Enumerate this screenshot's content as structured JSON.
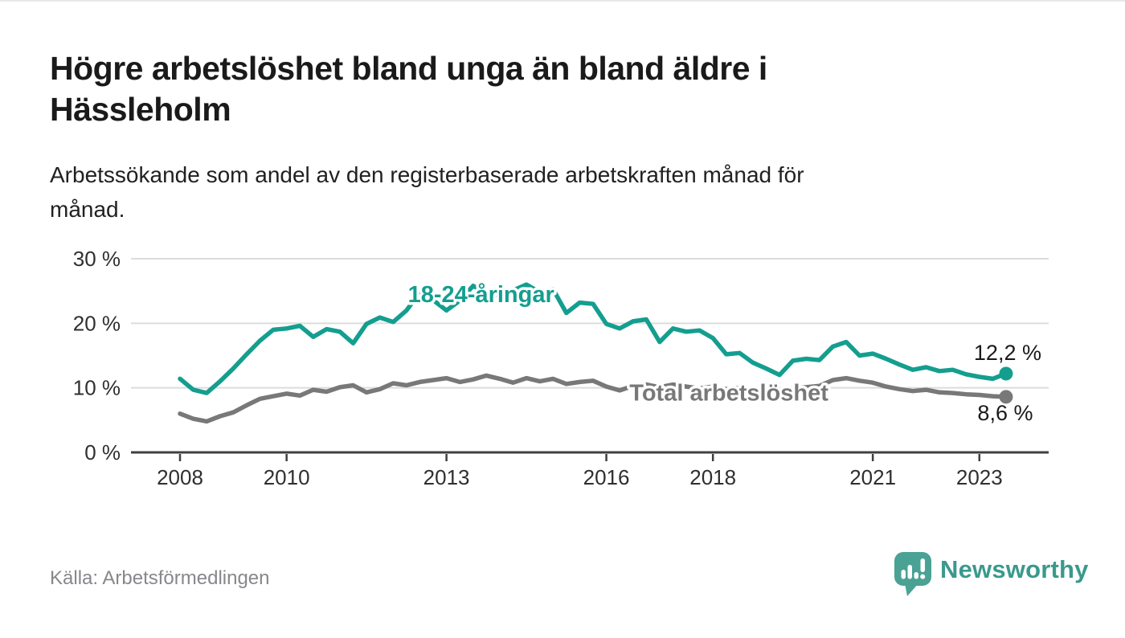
{
  "header": {
    "title_lines": [
      "Högre arbetslöshet bland unga än bland äldre i",
      "Hässleholm"
    ],
    "subtitle_lines": [
      "Arbetssökande som andel av den registerbaserade arbetskraften månad för",
      "månad."
    ]
  },
  "footer": {
    "source": "Källa: Arbetsförmedlingen",
    "brand": "Newsworthy"
  },
  "colors": {
    "youth_line": "#149e8f",
    "total_line": "#787878",
    "grid": "#dcdcdc",
    "axis": "#3f3f3f",
    "tick_text": "#2f2f2f",
    "value_text": "#1a1a1a",
    "logo_teal": "#4aa294",
    "wordmark_teal": "#3a998c"
  },
  "chart_data": {
    "type": "line",
    "title": "Högre arbetslöshet bland unga än bland äldre i Hässleholm",
    "subtitle": "Arbetssökande som andel av den registerbaserade arbetskraften månad för månad.",
    "source": "Källa: Arbetsförmedlingen",
    "grid": true,
    "legend_position": "inline-labels",
    "x_axis": {
      "min": 2007.08,
      "max": 2024.3,
      "ticks": [
        2008,
        2010,
        2013,
        2016,
        2018,
        2021,
        2023
      ]
    },
    "y_axis": {
      "min": 0,
      "max": 30,
      "ticks": [
        0,
        10,
        20,
        30
      ],
      "tick_suffix": " %"
    },
    "series": [
      {
        "name": "18-24-åringar",
        "color": "#149e8f",
        "label_anchor": {
          "x": 2013.65,
          "y": 24.5
        },
        "end_value_label": "12,2 %",
        "end_label_offset": {
          "dx": 2,
          "dy": -17
        },
        "points": [
          [
            2008.0,
            11.4
          ],
          [
            2008.25,
            9.7
          ],
          [
            2008.5,
            9.2
          ],
          [
            2008.75,
            11.0
          ],
          [
            2009.0,
            13.0
          ],
          [
            2009.25,
            15.2
          ],
          [
            2009.5,
            17.3
          ],
          [
            2009.75,
            19.0
          ],
          [
            2010.0,
            19.2
          ],
          [
            2010.25,
            19.6
          ],
          [
            2010.5,
            17.9
          ],
          [
            2010.75,
            19.1
          ],
          [
            2011.0,
            18.7
          ],
          [
            2011.25,
            16.9
          ],
          [
            2011.5,
            19.9
          ],
          [
            2011.75,
            20.9
          ],
          [
            2012.0,
            20.2
          ],
          [
            2012.25,
            22.0
          ],
          [
            2012.5,
            24.8
          ],
          [
            2012.75,
            23.6
          ],
          [
            2013.0,
            22.0
          ],
          [
            2013.25,
            23.5
          ],
          [
            2013.5,
            25.8
          ],
          [
            2013.75,
            24.6
          ],
          [
            2014.0,
            24.2
          ],
          [
            2014.25,
            25.1
          ],
          [
            2014.5,
            26.0
          ],
          [
            2014.75,
            24.8
          ],
          [
            2015.0,
            25.3
          ],
          [
            2015.25,
            21.6
          ],
          [
            2015.5,
            23.2
          ],
          [
            2015.75,
            23.0
          ],
          [
            2016.0,
            19.9
          ],
          [
            2016.25,
            19.2
          ],
          [
            2016.5,
            20.3
          ],
          [
            2016.75,
            20.6
          ],
          [
            2017.0,
            17.1
          ],
          [
            2017.25,
            19.2
          ],
          [
            2017.5,
            18.7
          ],
          [
            2017.75,
            18.9
          ],
          [
            2018.0,
            17.7
          ],
          [
            2018.25,
            15.2
          ],
          [
            2018.5,
            15.4
          ],
          [
            2018.75,
            13.9
          ],
          [
            2019.0,
            13.0
          ],
          [
            2019.25,
            12.0
          ],
          [
            2019.5,
            14.2
          ],
          [
            2019.75,
            14.5
          ],
          [
            2020.0,
            14.3
          ],
          [
            2020.25,
            16.4
          ],
          [
            2020.5,
            17.1
          ],
          [
            2020.75,
            15.0
          ],
          [
            2021.0,
            15.3
          ],
          [
            2021.25,
            14.5
          ],
          [
            2021.5,
            13.6
          ],
          [
            2021.75,
            12.8
          ],
          [
            2022.0,
            13.2
          ],
          [
            2022.25,
            12.6
          ],
          [
            2022.5,
            12.8
          ],
          [
            2022.75,
            12.1
          ],
          [
            2023.0,
            11.7
          ],
          [
            2023.25,
            11.4
          ],
          [
            2023.5,
            12.2
          ]
        ]
      },
      {
        "name": "Total arbetslöshet",
        "color": "#787878",
        "label_anchor": {
          "x": 2018.3,
          "y": 9.3
        },
        "end_value_label": "8,6 %",
        "end_label_offset": {
          "dx": -1,
          "dy": 29
        },
        "points": [
          [
            2008.0,
            6.0
          ],
          [
            2008.25,
            5.2
          ],
          [
            2008.5,
            4.8
          ],
          [
            2008.75,
            5.6
          ],
          [
            2009.0,
            6.2
          ],
          [
            2009.25,
            7.3
          ],
          [
            2009.5,
            8.3
          ],
          [
            2009.75,
            8.7
          ],
          [
            2010.0,
            9.1
          ],
          [
            2010.25,
            8.8
          ],
          [
            2010.5,
            9.7
          ],
          [
            2010.75,
            9.4
          ],
          [
            2011.0,
            10.1
          ],
          [
            2011.25,
            10.4
          ],
          [
            2011.5,
            9.3
          ],
          [
            2011.75,
            9.8
          ],
          [
            2012.0,
            10.7
          ],
          [
            2012.25,
            10.4
          ],
          [
            2012.5,
            10.9
          ],
          [
            2012.75,
            11.2
          ],
          [
            2013.0,
            11.5
          ],
          [
            2013.25,
            10.9
          ],
          [
            2013.5,
            11.3
          ],
          [
            2013.75,
            11.9
          ],
          [
            2014.0,
            11.4
          ],
          [
            2014.25,
            10.8
          ],
          [
            2014.5,
            11.5
          ],
          [
            2014.75,
            11.0
          ],
          [
            2015.0,
            11.4
          ],
          [
            2015.25,
            10.6
          ],
          [
            2015.5,
            10.9
          ],
          [
            2015.75,
            11.1
          ],
          [
            2016.0,
            10.2
          ],
          [
            2016.25,
            9.6
          ],
          [
            2016.5,
            10.3
          ],
          [
            2016.75,
            10.5
          ],
          [
            2017.0,
            10.1
          ],
          [
            2017.25,
            10.5
          ],
          [
            2017.5,
            10.2
          ],
          [
            2017.75,
            9.9
          ],
          [
            2018.0,
            10.2
          ],
          [
            2018.25,
            9.8
          ],
          [
            2018.5,
            10.0
          ],
          [
            2018.75,
            9.6
          ],
          [
            2019.0,
            9.7
          ],
          [
            2019.25,
            9.4
          ],
          [
            2019.5,
            9.9
          ],
          [
            2019.75,
            10.1
          ],
          [
            2020.0,
            10.3
          ],
          [
            2020.25,
            11.2
          ],
          [
            2020.5,
            11.5
          ],
          [
            2020.75,
            11.1
          ],
          [
            2021.0,
            10.8
          ],
          [
            2021.25,
            10.2
          ],
          [
            2021.5,
            9.8
          ],
          [
            2021.75,
            9.5
          ],
          [
            2022.0,
            9.7
          ],
          [
            2022.25,
            9.3
          ],
          [
            2022.5,
            9.2
          ],
          [
            2022.75,
            9.0
          ],
          [
            2023.0,
            8.9
          ],
          [
            2023.25,
            8.7
          ],
          [
            2023.5,
            8.6
          ]
        ]
      }
    ]
  }
}
